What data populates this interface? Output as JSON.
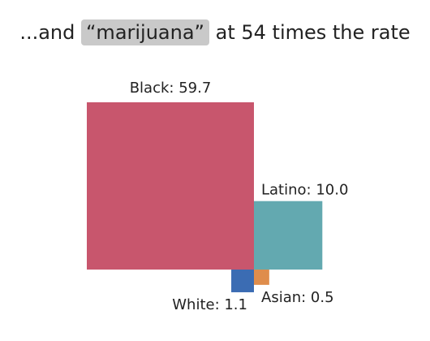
{
  "headline": {
    "prefix": "...and ",
    "highlight": "“marijuana”",
    "suffix": " at 54 times the rate"
  },
  "chart_data": {
    "type": "area",
    "title": "...and “marijuana” at 54 times the rate",
    "series": [
      {
        "name": "Black",
        "value": 59.7,
        "label": "Black: 59.7",
        "color": "#c8566d"
      },
      {
        "name": "Latino",
        "value": 10.0,
        "label": "Latino: 10.0",
        "color": "#63a9b0"
      },
      {
        "name": "White",
        "value": 1.1,
        "label": "White: 1.1",
        "color": "#3b6cb3"
      },
      {
        "name": "Asian",
        "value": 0.5,
        "label": "Asian: 0.5",
        "color": "#df8d4c"
      }
    ]
  }
}
